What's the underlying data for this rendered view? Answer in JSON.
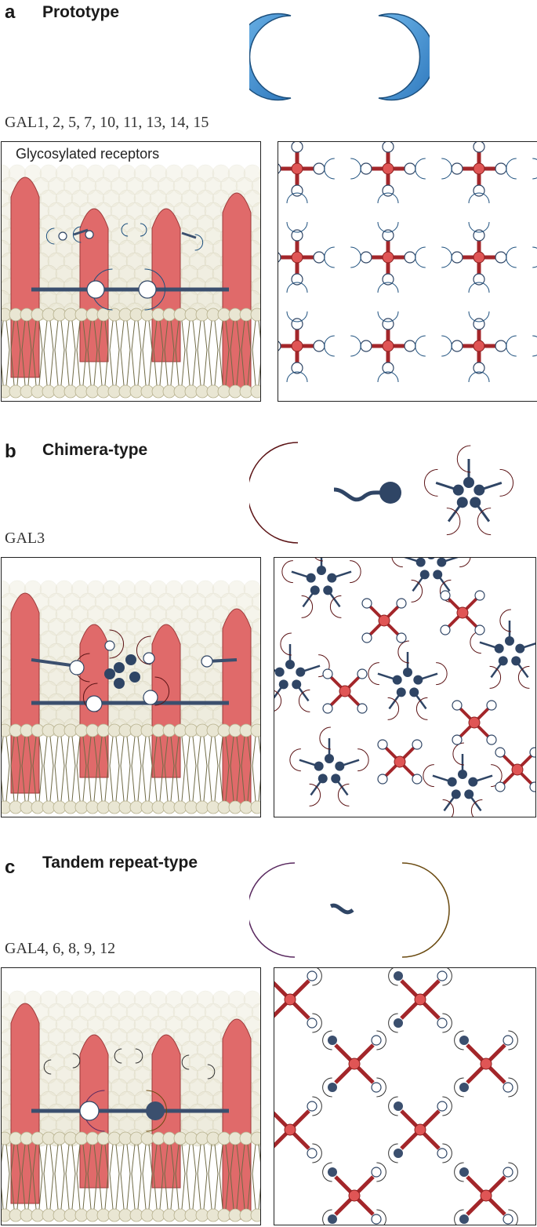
{
  "sections": [
    {
      "letter": "a",
      "title": "Prototype",
      "members": "GAL1, 2, 5, 7, 10, 11, 13, 14, 15",
      "callout": "Glycosylated receptors",
      "colors": {
        "primary": "#3b8fd0",
        "secondary": "#3b8fd0"
      }
    },
    {
      "letter": "b",
      "title": "Chimera-type",
      "members": "GAL3",
      "colors": {
        "primary": "#a82a2d",
        "node": "#2f4565"
      }
    },
    {
      "letter": "c",
      "title": "Tandem repeat-type",
      "members": "GAL4, 6, 8, 9, 12",
      "colors": {
        "primary": "#b66bc0",
        "secondary": "#c99a2e"
      }
    }
  ],
  "palette": {
    "receptor": "#e06a6a",
    "lipid_head": "#e9e6d3",
    "lipid_tail": "#6f6a45",
    "linker": "#3b4f6e",
    "lattice_bond": "#a3262a",
    "lattice_node": "#e05555"
  }
}
